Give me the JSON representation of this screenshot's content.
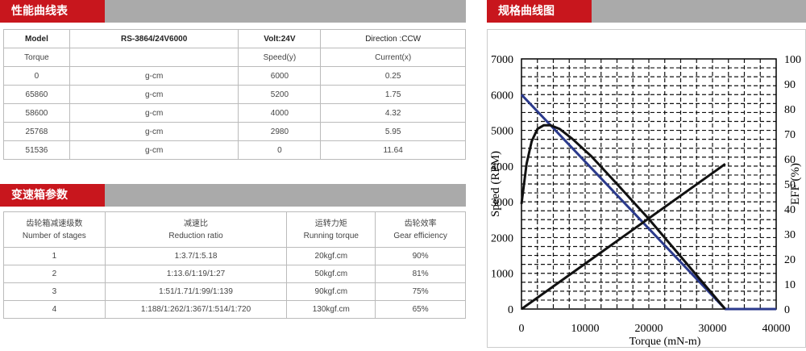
{
  "sections": {
    "performance_title": "性能曲线表",
    "gearbox_title": "变速箱参数",
    "curve_title": "规格曲线图"
  },
  "performance": {
    "header": [
      "Model",
      "RS-3864/24V6000",
      "Volt:24V",
      "Direction :CCW"
    ],
    "subheader": [
      "Torque",
      "",
      "Speed(y)",
      "Current(x)"
    ],
    "rows": [
      [
        "0",
        "g-cm",
        "6000",
        "0.25"
      ],
      [
        "65860",
        "g-cm",
        "5200",
        "1.75"
      ],
      [
        "58600",
        "g-cm",
        "4000",
        "4.32"
      ],
      [
        "25768",
        "g-cm",
        "2980",
        "5.95"
      ],
      [
        "51536",
        "g-cm",
        "0",
        "11.64"
      ]
    ]
  },
  "gearbox": {
    "header_cn": [
      "齿轮箱减速级数",
      "减速比",
      "运转力矩",
      "齿轮效率"
    ],
    "header_en": [
      "Number of stages",
      "Reduction ratio",
      "Running torque",
      "Gear efficiency"
    ],
    "rows": [
      [
        "1",
        "1:3.7/1:5.18",
        "20kgf.cm",
        "90%"
      ],
      [
        "2",
        "1:13.6/1:19/1:27",
        "50kgf.cm",
        "81%"
      ],
      [
        "3",
        "1:51/1.71/1:99/1:139",
        "90kgf.cm",
        "75%"
      ],
      [
        "4",
        "1:188/1:262/1:367/1:514/1:720",
        "130kgf.cm",
        "65%"
      ]
    ]
  },
  "chart_data": {
    "type": "line",
    "xlabel": "Torque (mN-m)",
    "ylabel_left": "Speed (RPM)",
    "ylabel_right": "EFF (%)",
    "xlim": [
      0,
      40000
    ],
    "ylim_left": [
      0,
      7000
    ],
    "ylim_right": [
      0,
      100
    ],
    "x_ticks": [
      0,
      10000,
      20000,
      30000,
      40000
    ],
    "y_left_ticks": [
      0,
      1000,
      2000,
      3000,
      4000,
      5000,
      6000,
      7000
    ],
    "y_right_ticks": [
      0,
      10,
      20,
      30,
      40,
      50,
      60,
      70,
      80,
      90,
      100
    ],
    "grid": true,
    "series": [
      {
        "axis": "left",
        "color": "#2b3a8c",
        "x": [
          0,
          32000,
          40000
        ],
        "y": [
          6000,
          0,
          0
        ]
      },
      {
        "axis": "right",
        "color": "#111111",
        "x": [
          0,
          800,
          1600,
          2500,
          3500,
          4500,
          6000,
          8000,
          11000,
          15000,
          20000,
          25000,
          29000,
          32000
        ],
        "y": [
          42,
          58,
          67,
          72,
          73.5,
          73.5,
          72,
          68,
          61,
          50,
          36,
          21,
          9,
          0
        ]
      },
      {
        "axis": "right",
        "color": "#111111",
        "x": [
          0,
          32000
        ],
        "y": [
          0,
          58
        ]
      }
    ]
  }
}
